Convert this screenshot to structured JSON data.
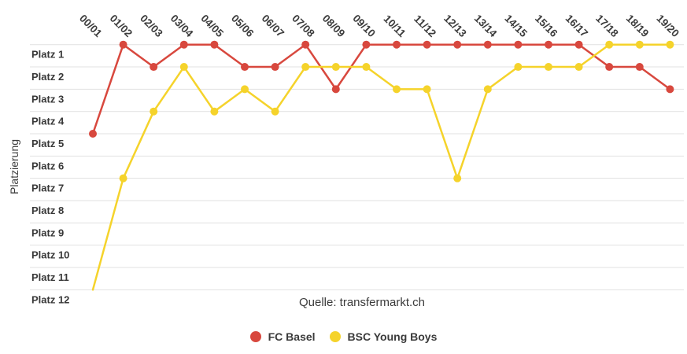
{
  "chart": {
    "source": "Quelle: transfermarkt.ch"
  },
  "colors": {
    "grid": "#e1e1e1",
    "tick_text": "#383838",
    "red": "#d8483e",
    "yellow": "#f5d32b"
  },
  "chart_data": {
    "type": "line",
    "title": "",
    "xlabel": "",
    "ylabel": "Platzierung",
    "x_categories": [
      "00/01",
      "01/02",
      "02/03",
      "03/04",
      "04/05",
      "05/06",
      "06/07",
      "07/08",
      "08/09",
      "09/10",
      "10/11",
      "11/12",
      "12/13",
      "13/14",
      "14/15",
      "15/16",
      "16/17",
      "17/18",
      "18/19",
      "19/20"
    ],
    "y_tick_labels": [
      "Platz 1",
      "Platz 2",
      "Platz 3",
      "Platz 4",
      "Platz 5",
      "Platz 6",
      "Platz 7",
      "Platz 8",
      "Platz 9",
      "Platz 10",
      "Platz 11",
      "Platz 12"
    ],
    "y_axis_inverted": true,
    "ylim": [
      1,
      12
    ],
    "grid": "horizontal-only",
    "legend_position": "bottom-center",
    "source": "Quelle: transfermarkt.ch",
    "series": [
      {
        "name": "FC Basel",
        "color": "#d8483e",
        "values": [
          5,
          1,
          2,
          1,
          1,
          2,
          2,
          1,
          3,
          1,
          1,
          1,
          1,
          1,
          1,
          1,
          1,
          2,
          2,
          3
        ]
      },
      {
        "name": "BSC Young Boys",
        "color": "#f5d32b",
        "values": [
          12,
          7,
          4,
          2,
          4,
          3,
          4,
          2,
          2,
          2,
          3,
          3,
          7,
          3,
          2,
          2,
          2,
          1,
          1,
          1
        ],
        "markers_hidden_at": [
          "00/01"
        ]
      }
    ]
  }
}
